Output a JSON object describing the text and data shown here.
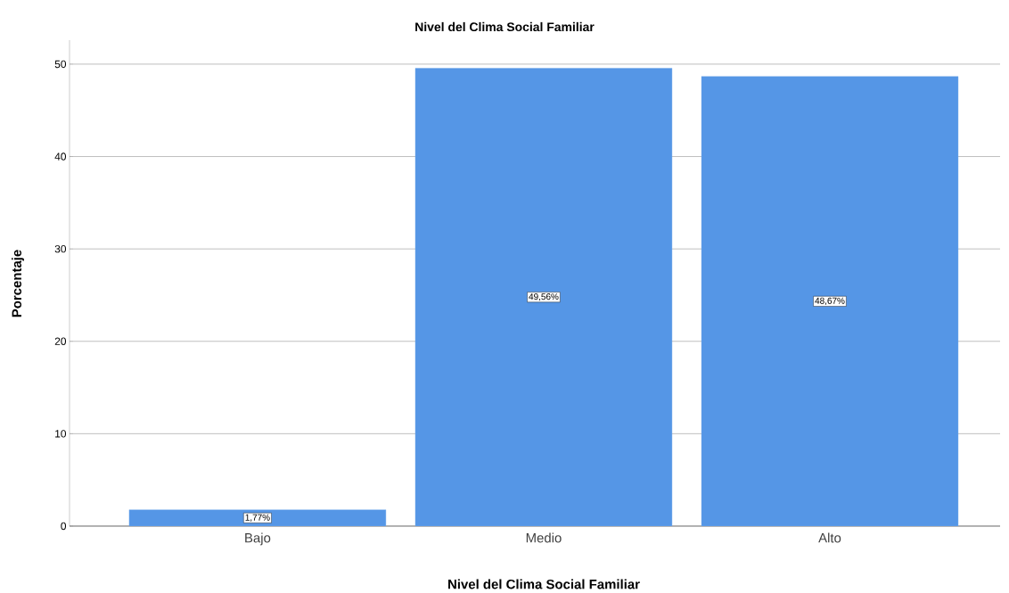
{
  "chart_data": {
    "type": "bar",
    "title": "Nivel del Clima Social Familiar",
    "xlabel": "Nivel del Clima Social Familiar",
    "ylabel": "Porcentaje",
    "categories": [
      "Bajo",
      "Medio",
      "Alto"
    ],
    "values": [
      1.77,
      49.56,
      48.67
    ],
    "value_labels": [
      "1,77%",
      "49,56%",
      "48,67%"
    ],
    "color": "#5596e6",
    "ylim": [
      0,
      52.6
    ],
    "yticks": [
      0,
      10,
      20,
      30,
      40,
      50
    ],
    "grid": "y"
  }
}
